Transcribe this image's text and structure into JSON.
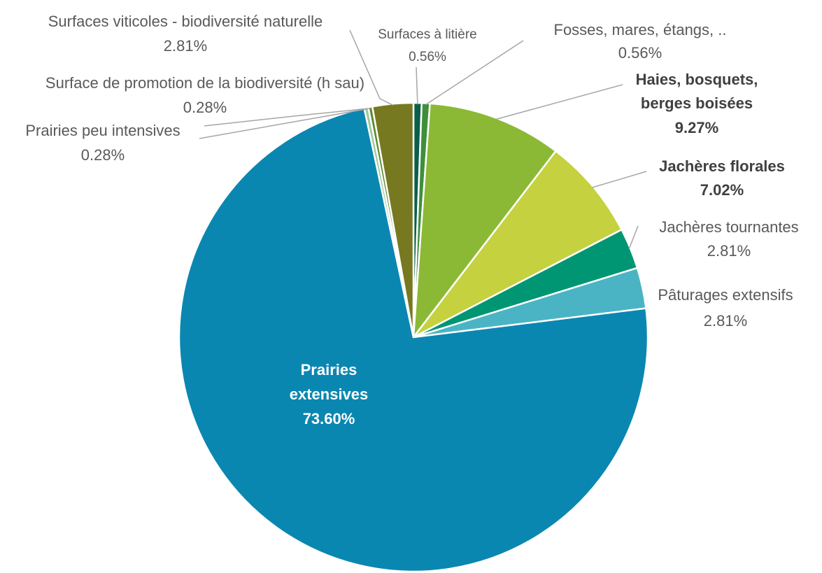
{
  "chart_data": {
    "type": "pie",
    "title": "",
    "slices": [
      {
        "label": "Surfaces à litière",
        "value": 0.56,
        "value_label": "0.56%",
        "color": "#0b5e4a"
      },
      {
        "label": "Fosses, mares, étangs, ..",
        "value": 0.56,
        "value_label": "0.56%",
        "color": "#3f8f3a"
      },
      {
        "label": "Haies, bosquets, berges boisées",
        "value": 9.27,
        "value_label": "9.27%",
        "color": "#8cb935"
      },
      {
        "label": "Jachères florales",
        "value": 7.02,
        "value_label": "7.02%",
        "color": "#c5d13e"
      },
      {
        "label": "Jachères tournantes",
        "value": 2.81,
        "value_label": "2.81%",
        "color": "#009673"
      },
      {
        "label": "Pâturages extensifs",
        "value": 2.81,
        "value_label": "2.81%",
        "color": "#4bb4c4"
      },
      {
        "label": "Prairies extensives",
        "value": 73.6,
        "value_label": "73.60%",
        "color": "#0a87b1"
      },
      {
        "label": "Prairies peu intensives",
        "value": 0.28,
        "value_label": "0.28%",
        "color": "#9cc99b"
      },
      {
        "label": "Surface de promotion de la biodiversité (h sau)",
        "value": 0.28,
        "value_label": "0.28%",
        "color": "#5d8a2e"
      },
      {
        "label": "Surfaces viticoles - biodiversité naturelle",
        "value": 2.81,
        "value_label": "2.81%",
        "color": "#76791f"
      }
    ]
  }
}
